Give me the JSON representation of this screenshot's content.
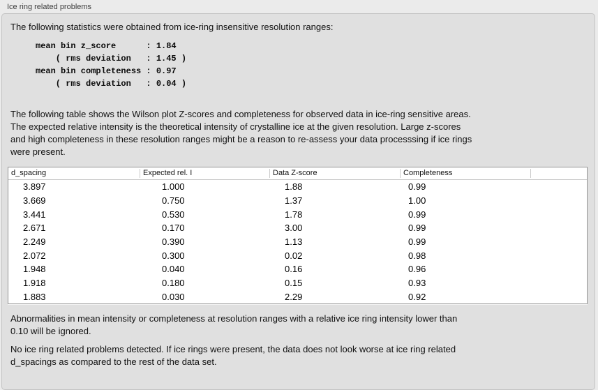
{
  "panel": {
    "title": "Ice ring related problems"
  },
  "intro": {
    "text": "The following statistics were obtained from ice-ring insensitive resolution ranges:",
    "stats_block": "mean bin z_score      : 1.84\n    ( rms deviation   : 1.45 )\nmean bin completeness : 0.97\n    ( rms deviation   : 0.04 )",
    "stats": {
      "mean_bin_z_score": "1.84",
      "z_score_rms_deviation": "1.45",
      "mean_bin_completeness": "0.97",
      "completeness_rms_deviation": "0.04"
    }
  },
  "table_description": "The following table shows the Wilson plot Z-scores and completeness for observed data in ice-ring sensitive areas.\nThe expected relative intensity is the theoretical intensity of crystalline ice at the given resolution. Large z-scores\nand high completeness in these resolution ranges might be a reason to re-assess your data processsing if ice rings\nwere present.",
  "table": {
    "headers": [
      "d_spacing",
      "Expected rel. I",
      "Data Z-score",
      "Completeness",
      ""
    ],
    "rows": [
      [
        "3.897",
        "1.000",
        "1.88",
        "0.99"
      ],
      [
        "3.669",
        "0.750",
        "1.37",
        "1.00"
      ],
      [
        "3.441",
        "0.530",
        "1.78",
        "0.99"
      ],
      [
        "2.671",
        "0.170",
        "3.00",
        "0.99"
      ],
      [
        "2.249",
        "0.390",
        "1.13",
        "0.99"
      ],
      [
        "2.072",
        "0.300",
        "0.02",
        "0.98"
      ],
      [
        "1.948",
        "0.040",
        "0.16",
        "0.96"
      ],
      [
        "1.918",
        "0.180",
        "0.15",
        "0.93"
      ],
      [
        "1.883",
        "0.030",
        "2.29",
        "0.92"
      ]
    ]
  },
  "notes": {
    "ignore_note": "Abnormalities in mean intensity or completeness at resolution ranges with a relative ice ring intensity lower than\n0.10 will be ignored.",
    "conclusion": "No ice ring related problems detected. If ice rings were present, the data does not look worse at ice ring related\nd_spacings as compared to the rest of the data set."
  }
}
